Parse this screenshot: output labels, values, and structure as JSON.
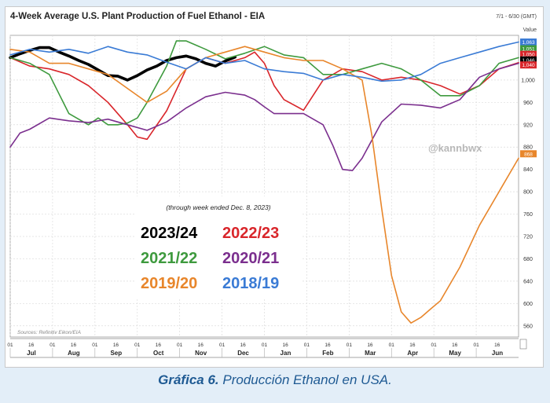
{
  "caption": {
    "label": "Gráfica 6.",
    "text": "Producción Ethanol en USA."
  },
  "chart_data": {
    "type": "line",
    "title": "4-Week Average U.S. Plant Production of Fuel Ethanol - EIA",
    "date_range": "7/1 - 6/30 (GMT)",
    "value_header": "Value",
    "watermark": "@kannbwx",
    "source": "Sources: Refinitiv Eikon/EIA",
    "annotation": "(through week ended Dec. 8, 2023)",
    "grid": true,
    "ylim": [
      540,
      1080
    ],
    "y_ticks": [
      1000,
      960,
      920,
      880,
      840,
      800,
      760,
      720,
      680,
      640,
      600,
      560
    ],
    "y_tick_labels": [
      "1,000",
      "960",
      "920",
      "880",
      "840",
      "800",
      "760",
      "720",
      "680",
      "640",
      "600",
      "560"
    ],
    "x_months": [
      "Jul",
      "Aug",
      "Sep",
      "Oct",
      "Nov",
      "Dec",
      "Jan",
      "Feb",
      "Mar",
      "Apr",
      "May",
      "Jun"
    ],
    "x_day_labels": [
      "01",
      "16"
    ],
    "x_unit": "week of year (0 = Jul 01)",
    "series": [
      {
        "name": "2023/24",
        "color": "#000000",
        "width": 3.6,
        "x": [
          0,
          1,
          2,
          3,
          4,
          5,
          6,
          7,
          8,
          9,
          10,
          11,
          12,
          13,
          14,
          15,
          16,
          17,
          18,
          19,
          20,
          21,
          22,
          23
        ],
        "y": [
          1040,
          1047,
          1053,
          1058,
          1058,
          1050,
          1043,
          1035,
          1028,
          1018,
          1008,
          1007,
          1000,
          1008,
          1018,
          1025,
          1035,
          1040,
          1043,
          1038,
          1030,
          1025,
          1034,
          1041
        ]
      },
      {
        "name": "2022/23",
        "color": "#d9262b",
        "width": 1.6,
        "x": [
          0,
          2,
          4,
          6,
          8,
          10,
          12,
          13,
          14,
          16,
          18,
          20,
          22,
          24,
          25,
          26,
          27,
          28,
          30,
          32,
          34,
          36,
          38,
          40,
          42,
          44,
          46,
          48,
          50,
          52
        ],
        "y": [
          1040,
          1025,
          1020,
          1010,
          990,
          960,
          920,
          898,
          894,
          945,
          1020,
          1040,
          1030,
          1040,
          1050,
          1030,
          990,
          965,
          946,
          1000,
          1020,
          1015,
          1000,
          1005,
          1000,
          990,
          975,
          990,
          1020,
          1031
        ]
      },
      {
        "name": "2021/22",
        "color": "#3e9a3e",
        "width": 1.6,
        "x": [
          0,
          2,
          4,
          5,
          6,
          8,
          9,
          10,
          11,
          12,
          13,
          14,
          16,
          17,
          18,
          20,
          22,
          24,
          26,
          28,
          30,
          32,
          34,
          36,
          38,
          40,
          42,
          44,
          46,
          48,
          50,
          52
        ],
        "y": [
          1040,
          1030,
          1010,
          975,
          940,
          920,
          932,
          920,
          920,
          923,
          932,
          960,
          1025,
          1070,
          1070,
          1055,
          1038,
          1048,
          1060,
          1045,
          1040,
          1010,
          1010,
          1020,
          1030,
          1020,
          1000,
          972,
          972,
          990,
          1030,
          1040
        ]
      },
      {
        "name": "2020/21",
        "color": "#7b2f8e",
        "width": 1.6,
        "x": [
          0,
          1,
          2,
          4,
          6,
          8,
          10,
          12,
          14,
          16,
          18,
          20,
          22,
          24,
          25,
          26,
          27,
          28,
          30,
          32,
          33,
          34,
          35,
          36,
          38,
          40,
          42,
          44,
          46,
          48,
          50,
          52
        ],
        "y": [
          880,
          905,
          912,
          932,
          927,
          924,
          930,
          920,
          910,
          925,
          950,
          970,
          978,
          973,
          965,
          952,
          940,
          940,
          940,
          920,
          883,
          840,
          838,
          860,
          925,
          957,
          955,
          950,
          965,
          1005,
          1020,
          1030
        ]
      },
      {
        "name": "2019/20",
        "color": "#e8862b",
        "width": 1.6,
        "x": [
          0,
          2,
          4,
          6,
          8,
          10,
          12,
          14,
          16,
          18,
          20,
          22,
          24,
          26,
          28,
          30,
          32,
          34,
          36,
          37,
          38,
          39,
          40,
          41,
          42,
          43,
          44,
          46,
          48,
          50,
          52
        ],
        "y": [
          1055,
          1050,
          1030,
          1030,
          1020,
          1010,
          985,
          960,
          980,
          1020,
          1040,
          1050,
          1060,
          1050,
          1040,
          1035,
          1035,
          1020,
          1000,
          900,
          770,
          650,
          585,
          565,
          575,
          590,
          605,
          665,
          740,
          800,
          860
        ]
      },
      {
        "name": "2018/19",
        "color": "#3a7bd5",
        "width": 1.6,
        "x": [
          0,
          2,
          4,
          6,
          8,
          10,
          12,
          14,
          16,
          18,
          20,
          22,
          24,
          26,
          28,
          30,
          32,
          34,
          36,
          38,
          40,
          42,
          44,
          46,
          48,
          50,
          52
        ],
        "y": [
          1045,
          1055,
          1050,
          1055,
          1048,
          1060,
          1050,
          1045,
          1032,
          1020,
          1040,
          1030,
          1035,
          1020,
          1015,
          1012,
          1000,
          1010,
          1005,
          998,
          1000,
          1010,
          1030,
          1040,
          1050,
          1060,
          1068
        ]
      }
    ],
    "value_tags": [
      {
        "label": "1,063",
        "value": 1068,
        "color": "#3a7bd5"
      },
      {
        "label": "1,051",
        "value": 1056,
        "color": "#3e9a3e"
      },
      {
        "label": "1,050",
        "value": 1046,
        "color": "#d9262b"
      },
      {
        "label": "1,046",
        "value": 1036,
        "color": "#000000"
      },
      {
        "label": "1,040",
        "value": 1027,
        "color": "#d9262b"
      },
      {
        "label": "868",
        "value": 868,
        "color": "#e8862b"
      }
    ],
    "legend": [
      {
        "label": "2023/24",
        "color": "#000000"
      },
      {
        "label": "2022/23",
        "color": "#d9262b"
      },
      {
        "label": "2021/22",
        "color": "#3e9a3e"
      },
      {
        "label": "2020/21",
        "color": "#7b2f8e"
      },
      {
        "label": "2019/20",
        "color": "#e8862b"
      },
      {
        "label": "2018/19",
        "color": "#3a7bd5"
      }
    ],
    "legend_placement": "center-left"
  }
}
